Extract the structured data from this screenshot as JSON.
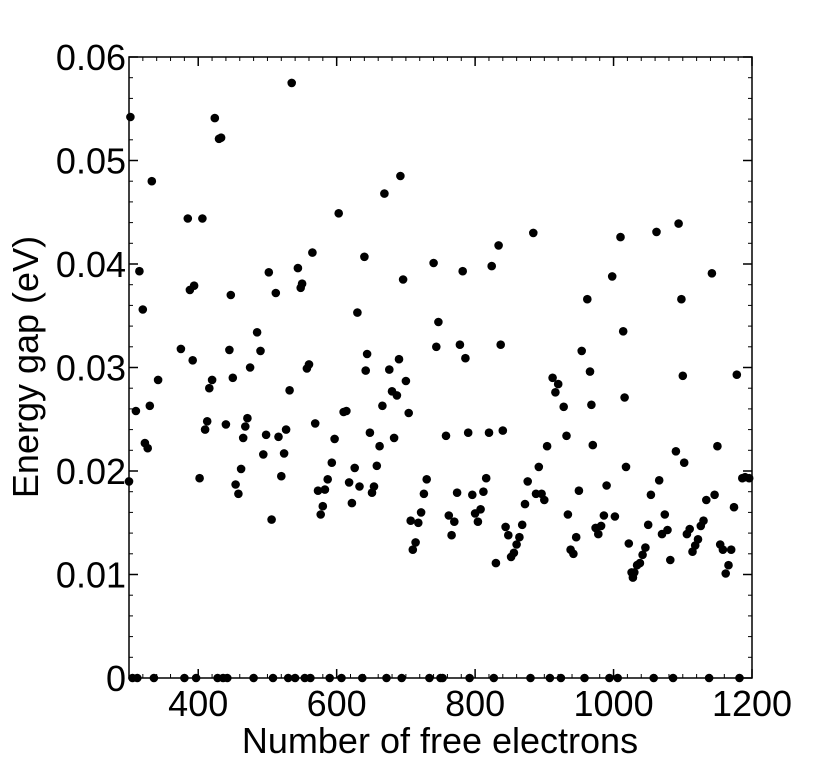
{
  "chart_data": {
    "type": "scatter",
    "title": "",
    "xlabel": "Number of free electrons",
    "ylabel": "Energy gap (eV)",
    "xlim": [
      300,
      1200
    ],
    "ylim": [
      0,
      0.06
    ],
    "x_ticks": [
      400,
      600,
      800,
      1000,
      1200
    ],
    "x_tick_labels": [
      "400",
      "600",
      "800",
      "1000",
      "1200"
    ],
    "y_ticks": [
      0,
      0.01,
      0.02,
      0.03,
      0.04,
      0.05,
      0.06
    ],
    "y_tick_labels": [
      "0",
      "0.01",
      "0.02",
      "0.03",
      "0.04",
      "0.05",
      "0.06"
    ],
    "grid": false,
    "marker_color": "#000000",
    "series": [
      {
        "points": [
          [
            300,
            0.019
          ],
          [
            302,
            0.0542
          ],
          [
            305,
            0
          ],
          [
            310,
            0.0258
          ],
          [
            312,
            0
          ],
          [
            315,
            0.0393
          ],
          [
            320,
            0.0356
          ],
          [
            323,
            0.0227
          ],
          [
            327,
            0.0222
          ],
          [
            330,
            0.0263
          ],
          [
            333,
            0.048
          ],
          [
            336,
            0
          ],
          [
            342,
            0.0288
          ],
          [
            375,
            0.0318
          ],
          [
            380,
            0
          ],
          [
            385,
            0.0444
          ],
          [
            388,
            0.0375
          ],
          [
            392,
            0.0307
          ],
          [
            394,
            0.0379
          ],
          [
            397,
            0
          ],
          [
            402,
            0.0193
          ],
          [
            406,
            0.0444
          ],
          [
            410,
            0.024
          ],
          [
            413,
            0.0248
          ],
          [
            416,
            0.028
          ],
          [
            420,
            0.0288
          ],
          [
            424,
            0.0541
          ],
          [
            428,
            0
          ],
          [
            430,
            0.0521
          ],
          [
            433,
            0.0522
          ],
          [
            436,
            0
          ],
          [
            440,
            0.0245
          ],
          [
            442,
            0
          ],
          [
            445,
            0.0317
          ],
          [
            447,
            0.037
          ],
          [
            450,
            0.029
          ],
          [
            454,
            0.0187
          ],
          [
            458,
            0.0178
          ],
          [
            462,
            0.0202
          ],
          [
            465,
            0.0232
          ],
          [
            468,
            0.0243
          ],
          [
            471,
            0.0251
          ],
          [
            475,
            0.03
          ],
          [
            480,
            0
          ],
          [
            485,
            0.0334
          ],
          [
            490,
            0.0316
          ],
          [
            494,
            0.0216
          ],
          [
            498,
            0.0235
          ],
          [
            502,
            0.0392
          ],
          [
            506,
            0.0153
          ],
          [
            508,
            0
          ],
          [
            512,
            0.0372
          ],
          [
            516,
            0.0233
          ],
          [
            520,
            0.0195
          ],
          [
            524,
            0.0217
          ],
          [
            527,
            0.024
          ],
          [
            530,
            0
          ],
          [
            532,
            0.0278
          ],
          [
            535,
            0.0575
          ],
          [
            540,
            0
          ],
          [
            544,
            0.0396
          ],
          [
            548,
            0.0377
          ],
          [
            550,
            0.0381
          ],
          [
            554,
            0
          ],
          [
            557,
            0.0299
          ],
          [
            560,
            0.0303
          ],
          [
            562,
            0
          ],
          [
            565,
            0.0411
          ],
          [
            569,
            0.0246
          ],
          [
            573,
            0.0181
          ],
          [
            577,
            0.0158
          ],
          [
            580,
            0.0166
          ],
          [
            583,
            0.0182
          ],
          [
            587,
            0.0192
          ],
          [
            590,
            0
          ],
          [
            593,
            0.0208
          ],
          [
            597,
            0.0231
          ],
          [
            603,
            0.0449
          ],
          [
            607,
            0
          ],
          [
            610,
            0.0257
          ],
          [
            614,
            0.0258
          ],
          [
            618,
            0.0189
          ],
          [
            622,
            0.0169
          ],
          [
            626,
            0.0203
          ],
          [
            630,
            0.0353
          ],
          [
            633,
            0.0185
          ],
          [
            637,
            0
          ],
          [
            640,
            0.0407
          ],
          [
            642,
            0.0297
          ],
          [
            644,
            0.0313
          ],
          [
            648,
            0.0237
          ],
          [
            651,
            0.0179
          ],
          [
            654,
            0.0185
          ],
          [
            658,
            0.0205
          ],
          [
            662,
            0.0224
          ],
          [
            666,
            0.0263
          ],
          [
            669,
            0.0468
          ],
          [
            672,
            0
          ],
          [
            676,
            0.0298
          ],
          [
            680,
            0.0277
          ],
          [
            683,
            0.0232
          ],
          [
            687,
            0.0273
          ],
          [
            690,
            0.0308
          ],
          [
            692,
            0.0485
          ],
          [
            694,
            0
          ],
          [
            696,
            0.0385
          ],
          [
            700,
            0.0287
          ],
          [
            704,
            0.0256
          ],
          [
            707,
            0.0152
          ],
          [
            710,
            0.0124
          ],
          [
            714,
            0.0131
          ],
          [
            718,
            0.015
          ],
          [
            722,
            0.016
          ],
          [
            726,
            0.0178
          ],
          [
            730,
            0.0192
          ],
          [
            734,
            0
          ],
          [
            740,
            0.0401
          ],
          [
            744,
            0.032
          ],
          [
            747,
            0.0344
          ],
          [
            750,
            0
          ],
          [
            753,
            0
          ],
          [
            758,
            0.0234
          ],
          [
            762,
            0.0157
          ],
          [
            766,
            0.0138
          ],
          [
            770,
            0.0151
          ],
          [
            774,
            0.0179
          ],
          [
            778,
            0.0322
          ],
          [
            782,
            0.0393
          ],
          [
            786,
            0.0309
          ],
          [
            790,
            0.0237
          ],
          [
            792,
            0
          ],
          [
            796,
            0.0177
          ],
          [
            800,
            0.0159
          ],
          [
            804,
            0.0151
          ],
          [
            808,
            0.0163
          ],
          [
            812,
            0.018
          ],
          [
            816,
            0.0193
          ],
          [
            820,
            0.0237
          ],
          [
            824,
            0.0398
          ],
          [
            827,
            0
          ],
          [
            830,
            0.0111
          ],
          [
            834,
            0.0418
          ],
          [
            837,
            0.0322
          ],
          [
            840,
            0.0239
          ],
          [
            844,
            0.0146
          ],
          [
            848,
            0.0138
          ],
          [
            852,
            0.0117
          ],
          [
            856,
            0.0121
          ],
          [
            860,
            0.0129
          ],
          [
            864,
            0.0136
          ],
          [
            868,
            0.0148
          ],
          [
            872,
            0.0168
          ],
          [
            876,
            0.019
          ],
          [
            880,
            0
          ],
          [
            884,
            0.043
          ],
          [
            888,
            0.0178
          ],
          [
            892,
            0.0204
          ],
          [
            896,
            0.0178
          ],
          [
            900,
            0.0172
          ],
          [
            904,
            0.0224
          ],
          [
            908,
            0
          ],
          [
            912,
            0.029
          ],
          [
            916,
            0.0276
          ],
          [
            920,
            0.0284
          ],
          [
            924,
            0
          ],
          [
            928,
            0.0262
          ],
          [
            932,
            0.0234
          ],
          [
            934,
            0.0158
          ],
          [
            938,
            0.0124
          ],
          [
            942,
            0.012
          ],
          [
            946,
            0.0136
          ],
          [
            950,
            0.0181
          ],
          [
            954,
            0.0316
          ],
          [
            958,
            0
          ],
          [
            962,
            0.0366
          ],
          [
            966,
            0.0296
          ],
          [
            968,
            0.0264
          ],
          [
            970,
            0.0225
          ],
          [
            974,
            0.0145
          ],
          [
            978,
            0.0139
          ],
          [
            982,
            0.0147
          ],
          [
            986,
            0.0157
          ],
          [
            990,
            0.0186
          ],
          [
            994,
            0
          ],
          [
            998,
            0.0388
          ],
          [
            1002,
            0.0156
          ],
          [
            1006,
            0
          ],
          [
            1010,
            0.0426
          ],
          [
            1014,
            0.0335
          ],
          [
            1016,
            0.0271
          ],
          [
            1018,
            0.0204
          ],
          [
            1022,
            0.013
          ],
          [
            1026,
            0.0102
          ],
          [
            1028,
            0.0097
          ],
          [
            1030,
            0.0102
          ],
          [
            1034,
            0.0109
          ],
          [
            1038,
            0.0111
          ],
          [
            1042,
            0.0119
          ],
          [
            1046,
            0.0126
          ],
          [
            1050,
            0.0148
          ],
          [
            1054,
            0.0177
          ],
          [
            1058,
            0
          ],
          [
            1062,
            0.0431
          ],
          [
            1066,
            0.0191
          ],
          [
            1070,
            0.0139
          ],
          [
            1074,
            0.0158
          ],
          [
            1078,
            0.0143
          ],
          [
            1082,
            0.0114
          ],
          [
            1086,
            0
          ],
          [
            1090,
            0.0219
          ],
          [
            1094,
            0.0439
          ],
          [
            1098,
            0.0366
          ],
          [
            1100,
            0.0292
          ],
          [
            1102,
            0.0208
          ],
          [
            1106,
            0.0139
          ],
          [
            1110,
            0.0144
          ],
          [
            1114,
            0.0122
          ],
          [
            1118,
            0.0128
          ],
          [
            1122,
            0.0134
          ],
          [
            1126,
            0.0147
          ],
          [
            1130,
            0.0152
          ],
          [
            1134,
            0.0172
          ],
          [
            1138,
            0
          ],
          [
            1142,
            0.0391
          ],
          [
            1146,
            0.0177
          ],
          [
            1150,
            0.0224
          ],
          [
            1154,
            0.0129
          ],
          [
            1158,
            0.0124
          ],
          [
            1162,
            0.0101
          ],
          [
            1166,
            0.0109
          ],
          [
            1170,
            0.0124
          ],
          [
            1174,
            0.0165
          ],
          [
            1178,
            0.0293
          ],
          [
            1182,
            0
          ],
          [
            1186,
            0.0193
          ],
          [
            1190,
            0.0194
          ],
          [
            1196,
            0.0193
          ]
        ]
      }
    ]
  }
}
